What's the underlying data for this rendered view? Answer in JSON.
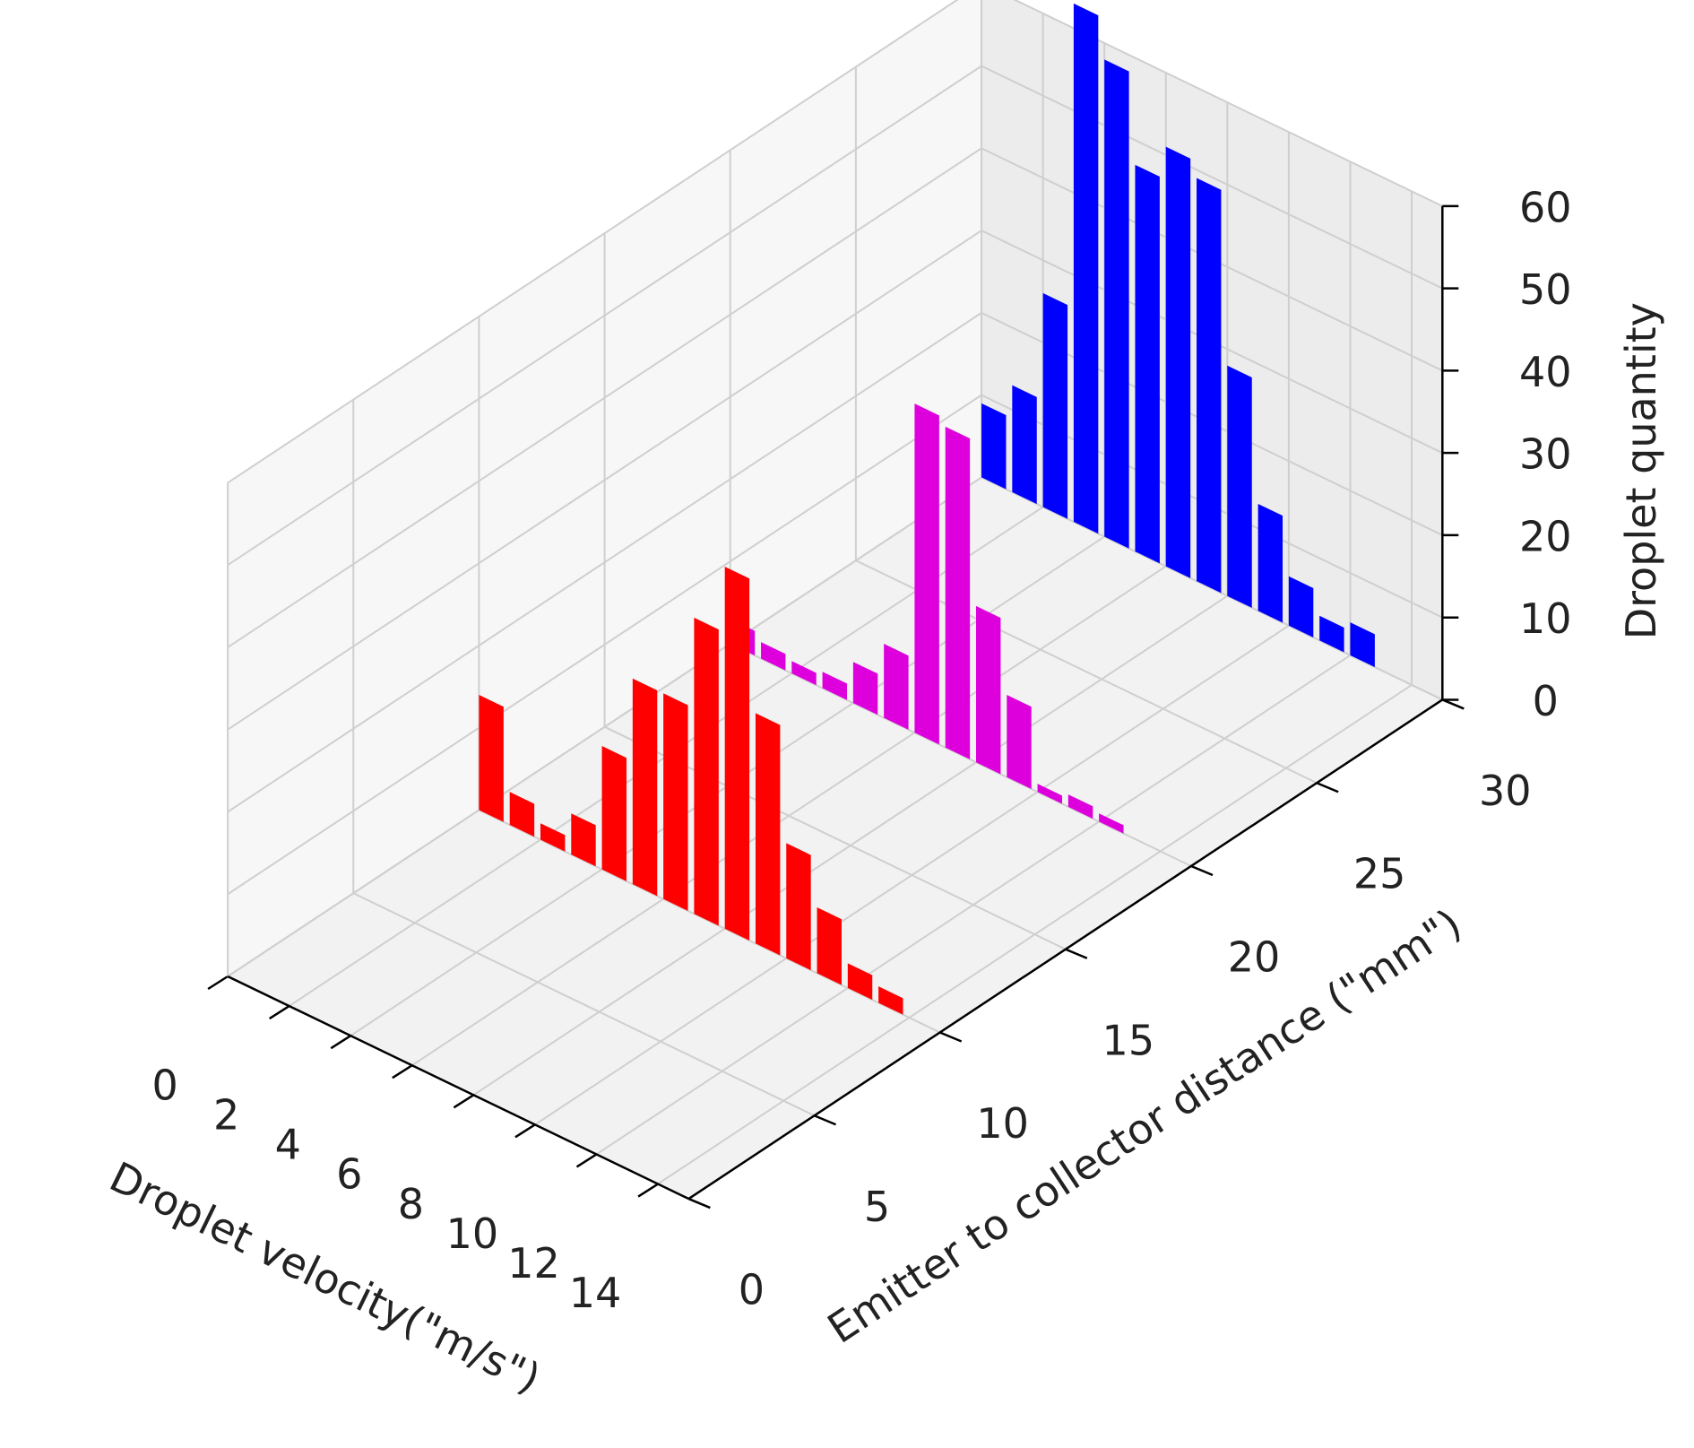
{
  "chart_data": {
    "type": "bar3d",
    "xlabel": "Droplet velocity(\"m/s\")",
    "ylabel": "Emitter to collector distance (\"mm\")",
    "zlabel": "Droplet quantity",
    "xlim": [
      0,
      15
    ],
    "ylim": [
      0,
      30
    ],
    "zlim": [
      0,
      60
    ],
    "xticks": [
      0,
      2,
      4,
      6,
      8,
      10,
      12,
      14
    ],
    "yticks": [
      0,
      5,
      10,
      15,
      20,
      25,
      30
    ],
    "zticks": [
      0,
      10,
      20,
      30,
      40,
      50,
      60
    ],
    "grid": true,
    "series": [
      {
        "color": "#0000ff",
        "y": 30,
        "x": [
          0,
          1,
          2,
          3,
          4,
          5,
          6,
          7,
          8,
          9,
          10,
          11,
          12
        ],
        "values": [
          9,
          13,
          26,
          63,
          58,
          47,
          51,
          49,
          28,
          13,
          6,
          3,
          4
        ]
      },
      {
        "color": "#dd00dd",
        "y": 20,
        "x": [
          0,
          1,
          2,
          3,
          4,
          5,
          6,
          7,
          8,
          9,
          10,
          11,
          12
        ],
        "values": [
          3,
          2,
          1.5,
          2,
          5,
          9,
          40,
          39,
          19,
          10,
          1,
          1.5,
          1
        ]
      },
      {
        "color": "#ff0000",
        "y": 10,
        "x": [
          0,
          1,
          2,
          3,
          4,
          5,
          6,
          7,
          8,
          9,
          10,
          11,
          12,
          13
        ],
        "values": [
          14,
          4,
          2,
          5,
          15,
          25,
          25,
          36,
          44,
          28,
          14,
          8,
          3,
          2
        ]
      }
    ]
  }
}
